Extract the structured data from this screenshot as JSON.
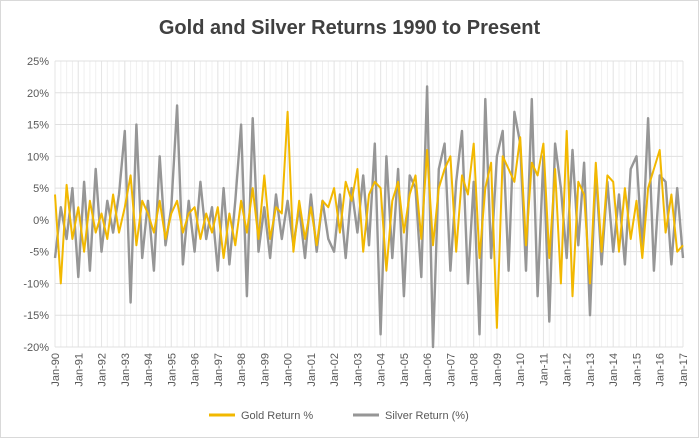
{
  "chart_data": {
    "type": "line",
    "title": "Gold and Silver Returns 1990 to Present",
    "xlabel": "",
    "ylabel": "",
    "ylim": [
      -0.2,
      0.25
    ],
    "y_ticks": [
      "25%",
      "20%",
      "15%",
      "10%",
      "5%",
      "0%",
      "-5%",
      "-10%",
      "-15%",
      "-20%"
    ],
    "y_tick_values": [
      0.25,
      0.2,
      0.15,
      0.1,
      0.05,
      0.0,
      -0.05,
      -0.1,
      -0.15,
      -0.2
    ],
    "x_ticks": [
      "Jan-90",
      "Jan-91",
      "Jan-92",
      "Jan-93",
      "Jan-94",
      "Jan-95",
      "Jan-96",
      "Jan-97",
      "Jan-98",
      "Jan-99",
      "Jan-00",
      "Jan-01",
      "Jan-02",
      "Jan-03",
      "Jan-04",
      "Jan-05",
      "Jan-06",
      "Jan-07",
      "Jan-08",
      "Jan-09",
      "Jan-10",
      "Jan-11",
      "Jan-12",
      "Jan-13",
      "Jan-14",
      "Jan-15",
      "Jan-16",
      "Jan-17"
    ],
    "x_tick_values": [
      1990,
      1991,
      1992,
      1993,
      1994,
      1995,
      1996,
      1997,
      1998,
      1999,
      2000,
      2001,
      2002,
      2003,
      2004,
      2005,
      2006,
      2007,
      2008,
      2009,
      2010,
      2011,
      2012,
      2013,
      2014,
      2015,
      2016,
      2017
    ],
    "grid": "vertical and horizontal",
    "legend_position": "bottom",
    "series": [
      {
        "name": "Gold Return %",
        "color": "#f2b800",
        "x": [
          1990.0,
          1990.25,
          1990.5,
          1990.75,
          1991.0,
          1991.25,
          1991.5,
          1991.75,
          1992.0,
          1992.25,
          1992.5,
          1992.75,
          1993.0,
          1993.25,
          1993.5,
          1993.75,
          1994.0,
          1994.25,
          1994.5,
          1994.75,
          1995.0,
          1995.25,
          1995.5,
          1995.75,
          1996.0,
          1996.25,
          1996.5,
          1996.75,
          1997.0,
          1997.25,
          1997.5,
          1997.75,
          1998.0,
          1998.25,
          1998.5,
          1998.75,
          1999.0,
          1999.25,
          1999.5,
          1999.75,
          2000.0,
          2000.25,
          2000.5,
          2000.75,
          2001.0,
          2001.25,
          2001.5,
          2001.75,
          2002.0,
          2002.25,
          2002.5,
          2002.75,
          2003.0,
          2003.25,
          2003.5,
          2003.75,
          2004.0,
          2004.25,
          2004.5,
          2004.75,
          2005.0,
          2005.25,
          2005.5,
          2005.75,
          2006.0,
          2006.25,
          2006.5,
          2006.75,
          2007.0,
          2007.25,
          2007.5,
          2007.75,
          2008.0,
          2008.25,
          2008.5,
          2008.75,
          2009.0,
          2009.25,
          2009.5,
          2009.75,
          2010.0,
          2010.25,
          2010.5,
          2010.75,
          2011.0,
          2011.25,
          2011.5,
          2011.75,
          2012.0,
          2012.25,
          2012.5,
          2012.75,
          2013.0,
          2013.25,
          2013.5,
          2013.75,
          2014.0,
          2014.25,
          2014.5,
          2014.75,
          2015.0,
          2015.25,
          2015.5,
          2015.75,
          2016.0,
          2016.25,
          2016.5,
          2016.75,
          2017.0
        ],
        "values": [
          0.04,
          -0.1,
          0.055,
          -0.03,
          0.02,
          -0.05,
          0.03,
          -0.02,
          0.01,
          -0.03,
          0.04,
          -0.02,
          0.02,
          0.07,
          -0.04,
          0.03,
          0.01,
          -0.02,
          0.03,
          -0.03,
          0.01,
          0.03,
          -0.02,
          0.01,
          0.02,
          -0.03,
          0.01,
          -0.02,
          0.02,
          -0.06,
          0.01,
          -0.04,
          0.03,
          -0.02,
          0.05,
          -0.03,
          0.07,
          -0.03,
          0.02,
          0.01,
          0.17,
          -0.05,
          0.03,
          -0.03,
          0.02,
          -0.04,
          0.03,
          0.02,
          0.05,
          -0.02,
          0.06,
          0.03,
          0.08,
          -0.05,
          0.04,
          0.06,
          0.05,
          -0.08,
          0.03,
          0.06,
          -0.02,
          0.04,
          0.07,
          -0.03,
          0.11,
          -0.04,
          0.05,
          0.08,
          0.1,
          -0.05,
          0.07,
          0.04,
          0.12,
          -0.06,
          0.05,
          0.09,
          -0.17,
          0.1,
          0.08,
          0.06,
          0.13,
          -0.04,
          0.09,
          0.07,
          0.12,
          -0.06,
          0.08,
          -0.1,
          0.14,
          -0.12,
          0.06,
          0.04,
          -0.1,
          0.09,
          -0.05,
          0.07,
          0.06,
          -0.05,
          0.05,
          -0.03,
          0.03,
          -0.06,
          0.05,
          0.08,
          0.11,
          -0.02,
          0.04,
          -0.05,
          -0.04
        ]
      },
      {
        "name": "Silver Return (%)",
        "color": "#969696",
        "x": [
          1990.0,
          1990.25,
          1990.5,
          1990.75,
          1991.0,
          1991.25,
          1991.5,
          1991.75,
          1992.0,
          1992.25,
          1992.5,
          1992.75,
          1993.0,
          1993.25,
          1993.5,
          1993.75,
          1994.0,
          1994.25,
          1994.5,
          1994.75,
          1995.0,
          1995.25,
          1995.5,
          1995.75,
          1996.0,
          1996.25,
          1996.5,
          1996.75,
          1997.0,
          1997.25,
          1997.5,
          1997.75,
          1998.0,
          1998.25,
          1998.5,
          1998.75,
          1999.0,
          1999.25,
          1999.5,
          1999.75,
          2000.0,
          2000.25,
          2000.5,
          2000.75,
          2001.0,
          2001.25,
          2001.5,
          2001.75,
          2002.0,
          2002.25,
          2002.5,
          2002.75,
          2003.0,
          2003.25,
          2003.5,
          2003.75,
          2004.0,
          2004.25,
          2004.5,
          2004.75,
          2005.0,
          2005.25,
          2005.5,
          2005.75,
          2006.0,
          2006.25,
          2006.5,
          2006.75,
          2007.0,
          2007.25,
          2007.5,
          2007.75,
          2008.0,
          2008.25,
          2008.5,
          2008.75,
          2009.0,
          2009.25,
          2009.5,
          2009.75,
          2010.0,
          2010.25,
          2010.5,
          2010.75,
          2011.0,
          2011.25,
          2011.5,
          2011.75,
          2012.0,
          2012.25,
          2012.5,
          2012.75,
          2013.0,
          2013.25,
          2013.5,
          2013.75,
          2014.0,
          2014.25,
          2014.5,
          2014.75,
          2015.0,
          2015.25,
          2015.5,
          2015.75,
          2016.0,
          2016.25,
          2016.5,
          2016.75,
          2017.0
        ],
        "values": [
          -0.06,
          0.02,
          -0.03,
          0.05,
          -0.09,
          0.06,
          -0.08,
          0.08,
          -0.05,
          0.03,
          -0.02,
          0.04,
          0.14,
          -0.13,
          0.15,
          -0.06,
          0.03,
          -0.08,
          0.1,
          -0.04,
          0.02,
          0.18,
          -0.07,
          0.03,
          -0.05,
          0.06,
          -0.03,
          0.02,
          -0.08,
          0.05,
          -0.07,
          0.03,
          0.15,
          -0.12,
          0.16,
          -0.05,
          0.02,
          -0.06,
          0.04,
          -0.03,
          0.03,
          -0.04,
          0.02,
          -0.06,
          0.04,
          -0.05,
          0.03,
          -0.03,
          -0.05,
          0.04,
          -0.06,
          0.05,
          -0.02,
          0.07,
          -0.04,
          0.12,
          -0.18,
          0.1,
          -0.06,
          0.08,
          -0.12,
          0.07,
          0.05,
          -0.09,
          0.21,
          -0.2,
          0.08,
          0.12,
          -0.08,
          0.06,
          0.14,
          -0.1,
          0.06,
          -0.18,
          0.19,
          -0.06,
          0.1,
          0.14,
          -0.08,
          0.17,
          0.12,
          -0.08,
          0.19,
          -0.12,
          0.1,
          -0.16,
          0.12,
          0.05,
          -0.06,
          0.11,
          -0.04,
          0.09,
          -0.15,
          0.08,
          -0.07,
          0.06,
          -0.05,
          0.04,
          -0.07,
          0.08,
          0.1,
          -0.05,
          0.16,
          -0.08,
          0.07,
          0.06,
          -0.07,
          0.05,
          -0.06
        ]
      }
    ]
  }
}
